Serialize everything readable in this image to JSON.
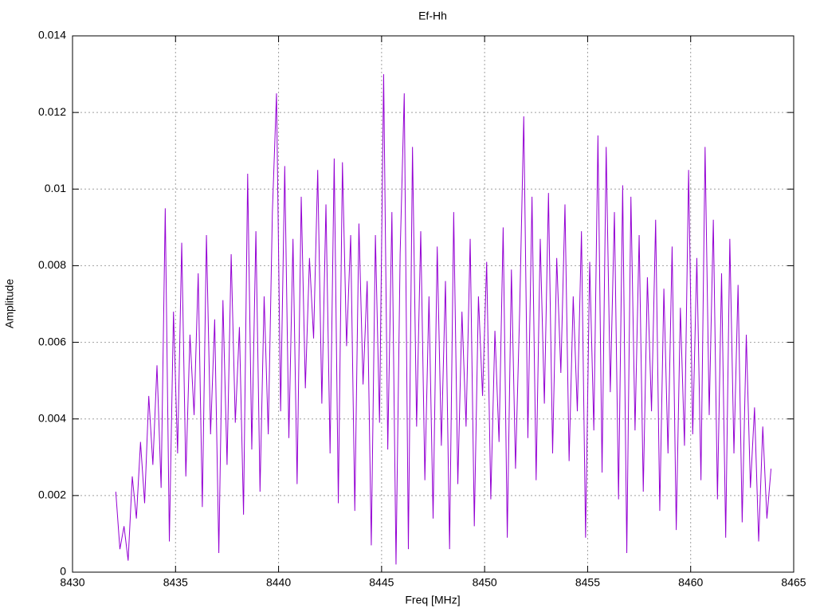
{
  "chart_data": {
    "type": "line",
    "title": "Ef-Hh",
    "xlabel": "Freq [MHz]",
    "ylabel": "Amplitude",
    "color": "#9400d3",
    "grid": true,
    "xlim": [
      8430,
      8465
    ],
    "xticks": [
      8430,
      8435,
      8440,
      8445,
      8450,
      8455,
      8460,
      8465
    ],
    "ylim": [
      0,
      0.014
    ],
    "yticks": [
      0,
      0.002,
      0.004,
      0.006,
      0.008,
      0.01,
      0.012,
      0.014
    ],
    "x": [
      8432.1,
      8432.3,
      8432.5,
      8432.7,
      8432.9,
      8433.1,
      8433.3,
      8433.5,
      8433.7,
      8433.9,
      8434.1,
      8434.3,
      8434.5,
      8434.7,
      8434.9,
      8435.1,
      8435.3,
      8435.5,
      8435.7,
      8435.9,
      8436.1,
      8436.3,
      8436.5,
      8436.7,
      8436.9,
      8437.1,
      8437.3,
      8437.5,
      8437.7,
      8437.9,
      8438.1,
      8438.3,
      8438.5,
      8438.7,
      8438.9,
      8439.1,
      8439.3,
      8439.5,
      8439.7,
      8439.9,
      8440.1,
      8440.3,
      8440.5,
      8440.7,
      8440.9,
      8441.1,
      8441.3,
      8441.5,
      8441.7,
      8441.9,
      8442.1,
      8442.3,
      8442.5,
      8442.7,
      8442.9,
      8443.1,
      8443.3,
      8443.5,
      8443.7,
      8443.9,
      8444.1,
      8444.3,
      8444.5,
      8444.7,
      8444.9,
      8445.1,
      8445.3,
      8445.5,
      8445.7,
      8445.9,
      8446.1,
      8446.3,
      8446.5,
      8446.7,
      8446.9,
      8447.1,
      8447.3,
      8447.5,
      8447.7,
      8447.9,
      8448.1,
      8448.3,
      8448.5,
      8448.7,
      8448.9,
      8449.1,
      8449.3,
      8449.5,
      8449.7,
      8449.9,
      8450.1,
      8450.3,
      8450.5,
      8450.7,
      8450.9,
      8451.1,
      8451.3,
      8451.5,
      8451.7,
      8451.9,
      8452.1,
      8452.3,
      8452.5,
      8452.7,
      8452.9,
      8453.1,
      8453.3,
      8453.5,
      8453.7,
      8453.9,
      8454.1,
      8454.3,
      8454.5,
      8454.7,
      8454.9,
      8455.1,
      8455.3,
      8455.5,
      8455.7,
      8455.9,
      8456.1,
      8456.3,
      8456.5,
      8456.7,
      8456.9,
      8457.1,
      8457.3,
      8457.5,
      8457.7,
      8457.9,
      8458.1,
      8458.3,
      8458.5,
      8458.7,
      8458.9,
      8459.1,
      8459.3,
      8459.5,
      8459.7,
      8459.9,
      8460.1,
      8460.3,
      8460.5,
      8460.7,
      8460.9,
      8461.1,
      8461.3,
      8461.5,
      8461.7,
      8461.9,
      8462.1,
      8462.3,
      8462.5,
      8462.7,
      8462.9,
      8463.1,
      8463.3,
      8463.5,
      8463.7,
      8463.9
    ],
    "values": [
      0.0021,
      0.0006,
      0.0012,
      0.0003,
      0.0025,
      0.0014,
      0.0034,
      0.0018,
      0.0046,
      0.0028,
      0.0054,
      0.0022,
      0.0095,
      0.0008,
      0.0068,
      0.0031,
      0.0086,
      0.0025,
      0.0062,
      0.0041,
      0.0078,
      0.0017,
      0.0088,
      0.0036,
      0.0066,
      0.0005,
      0.0071,
      0.0028,
      0.0083,
      0.0039,
      0.0064,
      0.0015,
      0.0104,
      0.0032,
      0.0089,
      0.0021,
      0.0072,
      0.0036,
      0.0094,
      0.0125,
      0.0042,
      0.0106,
      0.0035,
      0.0087,
      0.0023,
      0.0098,
      0.0048,
      0.0082,
      0.0061,
      0.0105,
      0.0044,
      0.0096,
      0.0031,
      0.0108,
      0.0018,
      0.0107,
      0.0059,
      0.0088,
      0.0016,
      0.0091,
      0.0049,
      0.0076,
      0.0007,
      0.0088,
      0.0039,
      0.013,
      0.0032,
      0.0094,
      0.0002,
      0.0083,
      0.0125,
      0.0006,
      0.0111,
      0.0038,
      0.0089,
      0.0024,
      0.0072,
      0.0014,
      0.0085,
      0.0033,
      0.0076,
      0.0006,
      0.0094,
      0.0023,
      0.0068,
      0.0038,
      0.0087,
      0.0012,
      0.0072,
      0.0046,
      0.0081,
      0.0019,
      0.0063,
      0.0034,
      0.009,
      0.0009,
      0.0079,
      0.0027,
      0.0068,
      0.0119,
      0.0035,
      0.0098,
      0.0024,
      0.0087,
      0.0044,
      0.0099,
      0.0031,
      0.0082,
      0.0052,
      0.0096,
      0.0029,
      0.0072,
      0.0042,
      0.0089,
      0.0009,
      0.0081,
      0.0037,
      0.0114,
      0.0026,
      0.0111,
      0.0047,
      0.0094,
      0.0019,
      0.0101,
      0.0005,
      0.0098,
      0.0037,
      0.0088,
      0.0021,
      0.0077,
      0.0042,
      0.0092,
      0.0016,
      0.0074,
      0.0031,
      0.0085,
      0.0011,
      0.0069,
      0.0033,
      0.0105,
      0.0036,
      0.0082,
      0.0024,
      0.0111,
      0.0041,
      0.0092,
      0.0019,
      0.0078,
      0.0009,
      0.0087,
      0.0031,
      0.0075,
      0.0013,
      0.0062,
      0.0022,
      0.0043,
      0.0008,
      0.0038,
      0.0014,
      0.0027
    ]
  }
}
